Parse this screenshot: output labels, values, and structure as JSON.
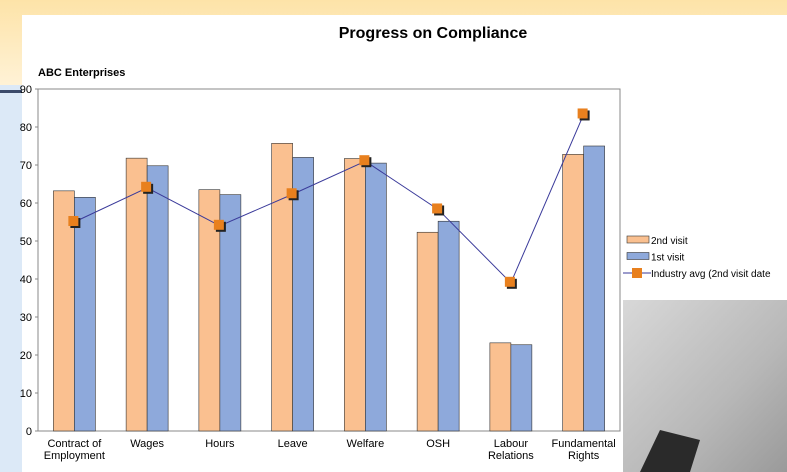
{
  "chart_data": {
    "type": "bar-line",
    "title": "Progress on Compliance",
    "subtitle": "ABC Enterprises",
    "categories": [
      [
        "Contract of",
        "Employment"
      ],
      [
        "Wages"
      ],
      [
        "Hours"
      ],
      [
        "Leave"
      ],
      [
        "Welfare"
      ],
      [
        "OSH"
      ],
      [
        "Labour",
        "Relations"
      ],
      [
        "Fundamental",
        "Rights"
      ]
    ],
    "series": [
      {
        "name": "2nd visit",
        "color": "#fac090",
        "kind": "bar",
        "values": [
          63.2,
          71.8,
          63.5,
          75.7,
          71.7,
          52.3,
          23.2,
          72.8
        ]
      },
      {
        "name": "1st visit",
        "color": "#8ea9db",
        "kind": "bar",
        "values": [
          61.5,
          69.8,
          62.2,
          72.0,
          70.5,
          55.2,
          22.7,
          75.0
        ]
      },
      {
        "name": "Industry avg (2nd visit date",
        "color": "#e8801e",
        "line_color": "#3a3a9a",
        "kind": "line",
        "values": [
          55.0,
          64.0,
          54.0,
          62.3,
          71.0,
          58.3,
          39.0,
          83.3
        ]
      }
    ],
    "ylim": [
      0,
      90
    ],
    "yticks": [
      0,
      10,
      20,
      30,
      40,
      50,
      60,
      70,
      80,
      90
    ],
    "grid": false,
    "legend": "right"
  }
}
